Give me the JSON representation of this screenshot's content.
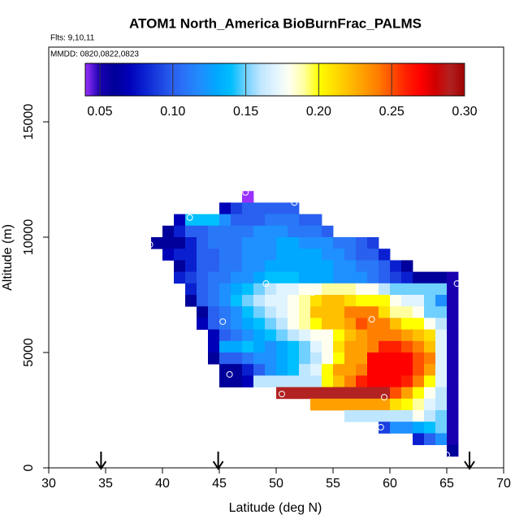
{
  "chart_data": {
    "type": "heatmap",
    "title": "ATOM1 North_America BioBurnFrac_PALMS",
    "flights": "Flts: 9,10,11",
    "dates": "MMDD: 0820,0822,0823",
    "x_label": "Latitude (deg N)",
    "y_label": "Altitude (m)",
    "xlim": [
      30,
      70
    ],
    "ylim": [
      0,
      18240
    ],
    "xticks": [
      30,
      35,
      40,
      45,
      50,
      55,
      60,
      65,
      70
    ],
    "yticks": [
      0,
      5000,
      10000,
      15000
    ],
    "zlim": [
      0.04,
      0.3
    ],
    "colorbar_ticks": [
      0.05,
      {
        "value": 0.1,
        "label": "0.10"
      },
      0.15,
      {
        "value": 0.2,
        "label": "0.20"
      },
      0.25,
      {
        "value": 0.3,
        "label": "0.30"
      }
    ],
    "colors": [
      "#9b30ff",
      "#1800b0",
      "#00009a",
      "#0000b8",
      "#0a20d0",
      "#1a40e0",
      "#2a60f0",
      "#2878f8",
      "#1e90ff",
      "#00a8ff",
      "#00bfff",
      "#70d0ff",
      "#bfe6ff",
      "#e0f4ff",
      "#fffff0",
      "#ffffa0",
      "#ffff00",
      "#ffe000",
      "#ffc000",
      "#ffa000",
      "#ff8000",
      "#ff5000",
      "#ff2000",
      "#ff0000",
      "#d00000",
      "#b22222",
      "#a00000"
    ],
    "x": [
      39.5,
      40.5,
      41.5,
      42.5,
      43.5,
      44.5,
      45.5,
      46.5,
      47.5,
      48.5,
      49.5,
      50.5,
      51.5,
      52.5,
      53.5,
      54.5,
      55.5,
      56.5,
      57.5,
      58.5,
      59.5,
      60.5,
      61.5,
      62.5,
      63.5,
      64.5,
      65.5
    ],
    "y": [
      11750,
      11250,
      10750,
      10250,
      9750,
      9250,
      8750,
      8250,
      7750,
      7250,
      6750,
      6250,
      5750,
      5250,
      4750,
      4250,
      3750,
      3250,
      2750,
      2250,
      1750,
      1250,
      750
    ],
    "z": [
      [
        null,
        null,
        null,
        null,
        null,
        null,
        null,
        null,
        0.04,
        null,
        null,
        null,
        null,
        null,
        null,
        null,
        null,
        null,
        null,
        null,
        null,
        null,
        null,
        null,
        null,
        null,
        null
      ],
      [
        null,
        null,
        null,
        null,
        null,
        null,
        0.07,
        0.09,
        0.1,
        0.1,
        0.1,
        0.1,
        0.1,
        null,
        null,
        null,
        null,
        null,
        null,
        null,
        null,
        null,
        null,
        null,
        null,
        null,
        null
      ],
      [
        null,
        null,
        0.07,
        0.14,
        0.14,
        0.14,
        0.12,
        0.1,
        0.1,
        0.1,
        0.11,
        0.11,
        0.11,
        0.1,
        0.1,
        null,
        null,
        null,
        null,
        null,
        null,
        null,
        null,
        null,
        null,
        null,
        null
      ],
      [
        null,
        0.06,
        0.08,
        0.1,
        0.1,
        0.11,
        0.11,
        0.11,
        0.11,
        0.12,
        0.12,
        0.12,
        0.11,
        0.11,
        0.11,
        0.1,
        null,
        null,
        null,
        null,
        null,
        null,
        null,
        null,
        null,
        null,
        null
      ],
      [
        0.06,
        0.06,
        0.06,
        0.08,
        0.1,
        0.11,
        0.11,
        0.11,
        0.12,
        0.12,
        0.12,
        0.13,
        0.13,
        0.12,
        0.12,
        0.12,
        0.11,
        0.11,
        0.1,
        0.09,
        null,
        null,
        null,
        null,
        null,
        null,
        null
      ],
      [
        null,
        0.07,
        0.08,
        0.08,
        0.1,
        0.1,
        0.11,
        0.11,
        0.12,
        0.12,
        0.12,
        0.13,
        0.13,
        0.13,
        0.13,
        0.12,
        0.12,
        0.11,
        0.1,
        0.1,
        0.08,
        null,
        null,
        null,
        null,
        null,
        null
      ],
      [
        null,
        null,
        0.06,
        0.08,
        0.1,
        0.1,
        0.11,
        0.11,
        0.12,
        0.12,
        0.13,
        0.13,
        0.13,
        0.13,
        0.13,
        0.13,
        0.12,
        0.12,
        0.11,
        0.11,
        0.1,
        0.08,
        0.06,
        null,
        null,
        null,
        null
      ],
      [
        null,
        null,
        0.08,
        0.09,
        0.1,
        0.11,
        0.11,
        0.12,
        0.12,
        0.13,
        0.14,
        0.14,
        0.14,
        0.13,
        0.13,
        0.13,
        0.12,
        0.12,
        0.12,
        0.11,
        0.1,
        0.09,
        0.08,
        0.06,
        0.06,
        0.06,
        0.05
      ],
      [
        null,
        null,
        null,
        0.08,
        0.1,
        0.11,
        0.12,
        0.13,
        0.14,
        0.15,
        0.16,
        0.17,
        0.17,
        0.18,
        0.18,
        0.19,
        0.19,
        0.19,
        0.18,
        0.18,
        0.16,
        0.15,
        0.15,
        0.15,
        0.15,
        0.15,
        0.05
      ],
      [
        null,
        null,
        null,
        0.06,
        0.1,
        0.11,
        0.12,
        0.14,
        0.15,
        0.16,
        0.17,
        0.17,
        0.18,
        0.19,
        0.21,
        0.22,
        0.22,
        0.21,
        0.2,
        0.2,
        0.2,
        0.18,
        0.17,
        0.17,
        0.15,
        0.12,
        0.05
      ],
      [
        null,
        null,
        null,
        null,
        0.06,
        0.1,
        0.11,
        0.12,
        0.14,
        0.15,
        0.16,
        0.17,
        0.18,
        0.19,
        0.22,
        0.22,
        0.22,
        0.24,
        0.24,
        0.24,
        0.21,
        0.19,
        0.19,
        0.18,
        0.15,
        0.15,
        0.05
      ],
      [
        null,
        null,
        null,
        null,
        0.07,
        0.1,
        0.11,
        0.12,
        0.13,
        0.14,
        0.15,
        0.16,
        0.18,
        0.19,
        0.2,
        0.22,
        0.22,
        0.23,
        0.25,
        0.24,
        0.24,
        0.22,
        0.2,
        0.2,
        0.18,
        0.16,
        0.05
      ],
      [
        null,
        null,
        null,
        null,
        null,
        0.07,
        0.1,
        0.11,
        0.12,
        0.13,
        0.14,
        0.15,
        0.16,
        0.17,
        0.18,
        0.18,
        0.2,
        0.22,
        0.23,
        0.24,
        0.24,
        0.24,
        0.23,
        0.22,
        0.21,
        0.17,
        0.05
      ],
      [
        null,
        null,
        null,
        null,
        null,
        0.07,
        0.13,
        0.13,
        0.14,
        0.13,
        0.12,
        0.13,
        0.14,
        0.15,
        0.17,
        0.18,
        0.21,
        0.23,
        0.23,
        0.24,
        0.26,
        0.26,
        0.25,
        0.24,
        0.22,
        0.17,
        0.05
      ],
      [
        null,
        null,
        null,
        null,
        null,
        0.06,
        0.1,
        0.1,
        0.11,
        0.12,
        0.12,
        0.13,
        0.14,
        0.15,
        0.16,
        0.18,
        0.2,
        0.23,
        0.23,
        0.27,
        0.27,
        0.27,
        0.27,
        0.25,
        0.24,
        0.17,
        0.05
      ],
      [
        null,
        null,
        null,
        null,
        null,
        null,
        0.06,
        0.06,
        0.08,
        0.1,
        0.12,
        0.13,
        0.14,
        0.16,
        0.17,
        0.2,
        0.23,
        0.23,
        0.24,
        0.27,
        0.27,
        0.27,
        0.27,
        0.25,
        0.23,
        0.17,
        0.05
      ],
      [
        null,
        null,
        null,
        null,
        null,
        null,
        0.06,
        0.06,
        0.07,
        0.16,
        0.16,
        0.16,
        0.16,
        0.16,
        0.16,
        0.2,
        0.22,
        0.24,
        0.26,
        0.27,
        0.27,
        0.27,
        0.26,
        0.24,
        0.2,
        0.17,
        0.05
      ],
      [
        null,
        null,
        null,
        null,
        null,
        null,
        null,
        null,
        null,
        null,
        null,
        0.29,
        0.29,
        0.29,
        0.29,
        0.29,
        0.29,
        0.29,
        0.29,
        0.29,
        0.29,
        0.25,
        0.23,
        0.2,
        0.18,
        0.16,
        0.05
      ],
      [
        null,
        null,
        null,
        null,
        null,
        null,
        null,
        null,
        null,
        null,
        null,
        null,
        null,
        null,
        0.23,
        0.23,
        0.23,
        0.23,
        0.23,
        0.23,
        0.23,
        0.21,
        0.2,
        0.19,
        0.17,
        0.16,
        0.05
      ],
      [
        null,
        null,
        null,
        null,
        null,
        null,
        null,
        null,
        null,
        null,
        null,
        null,
        null,
        null,
        null,
        null,
        null,
        0.16,
        0.16,
        0.16,
        0.16,
        0.16,
        0.16,
        0.18,
        0.16,
        0.15,
        0.05
      ],
      [
        null,
        null,
        null,
        null,
        null,
        null,
        null,
        null,
        null,
        null,
        null,
        null,
        null,
        null,
        null,
        null,
        null,
        null,
        null,
        null,
        0.09,
        0.12,
        0.12,
        0.13,
        0.14,
        0.15,
        0.05
      ],
      [
        null,
        null,
        null,
        null,
        null,
        null,
        null,
        null,
        null,
        null,
        null,
        null,
        null,
        null,
        null,
        null,
        null,
        null,
        null,
        null,
        null,
        null,
        null,
        0.08,
        0.1,
        0.12,
        0.05
      ],
      [
        null,
        null,
        null,
        null,
        null,
        null,
        null,
        null,
        null,
        null,
        null,
        null,
        null,
        null,
        null,
        null,
        null,
        null,
        null,
        null,
        null,
        null,
        null,
        null,
        null,
        null,
        0.06
      ]
    ],
    "points": {
      "x": [
        47.3,
        51.6,
        42.4,
        38.9,
        49.1,
        65.9,
        53.2,
        58.4,
        45.3,
        45.9,
        50.5,
        59.5,
        59.2,
        65.0
      ],
      "y": [
        11940,
        11500,
        10850,
        9680,
        7990,
        7990,
        7600,
        6440,
        6340,
        4050,
        3200,
        3060,
        1760,
        560
      ]
    },
    "arrows": [
      34.6,
      44.9,
      67.0
    ]
  }
}
